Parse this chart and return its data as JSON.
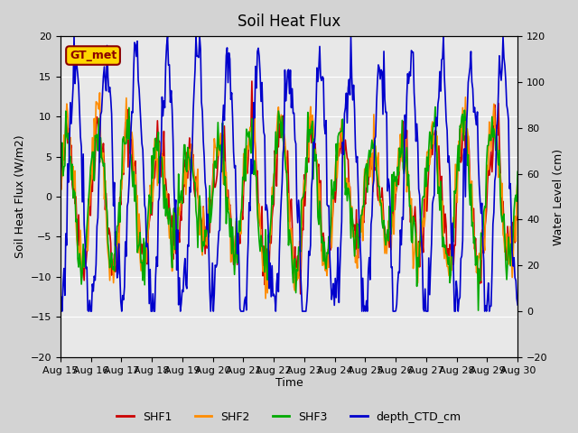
{
  "title": "Soil Heat Flux",
  "xlabel": "Time",
  "ylabel_left": "Soil Heat Flux (W/m2)",
  "ylabel_right": "Water Level (cm)",
  "ylim_left": [
    -20,
    20
  ],
  "ylim_right": [
    -20,
    120
  ],
  "background_color": "#d3d3d3",
  "plot_bg_color": "#e8e8e8",
  "xtick_labels": [
    "Aug 15",
    "Aug 16",
    "Aug 17",
    "Aug 18",
    "Aug 19",
    "Aug 20",
    "Aug 21",
    "Aug 22",
    "Aug 23",
    "Aug 24",
    "Aug 25",
    "Aug 26",
    "Aug 27",
    "Aug 28",
    "Aug 29",
    "Aug 30"
  ],
  "xtick_pos": [
    0,
    1,
    2,
    3,
    4,
    5,
    6,
    7,
    8,
    9,
    10,
    11,
    12,
    13,
    14,
    15
  ],
  "yticks_left": [
    -20,
    -15,
    -10,
    -5,
    0,
    5,
    10,
    15,
    20
  ],
  "yticks_right": [
    -20,
    0,
    20,
    40,
    60,
    80,
    100,
    120
  ],
  "legend_items": [
    "SHF1",
    "SHF2",
    "SHF3",
    "depth_CTD_cm"
  ],
  "annotation_text": "GT_met",
  "annotation_color": "#8b0000",
  "annotation_bg": "#ffd700",
  "colors": {
    "SHF1": "#cc0000",
    "SHF2": "#ff8c00",
    "SHF3": "#00aa00",
    "depth_CTD_cm": "#0000cc"
  },
  "linewidth": 1.2,
  "n_points": 500
}
